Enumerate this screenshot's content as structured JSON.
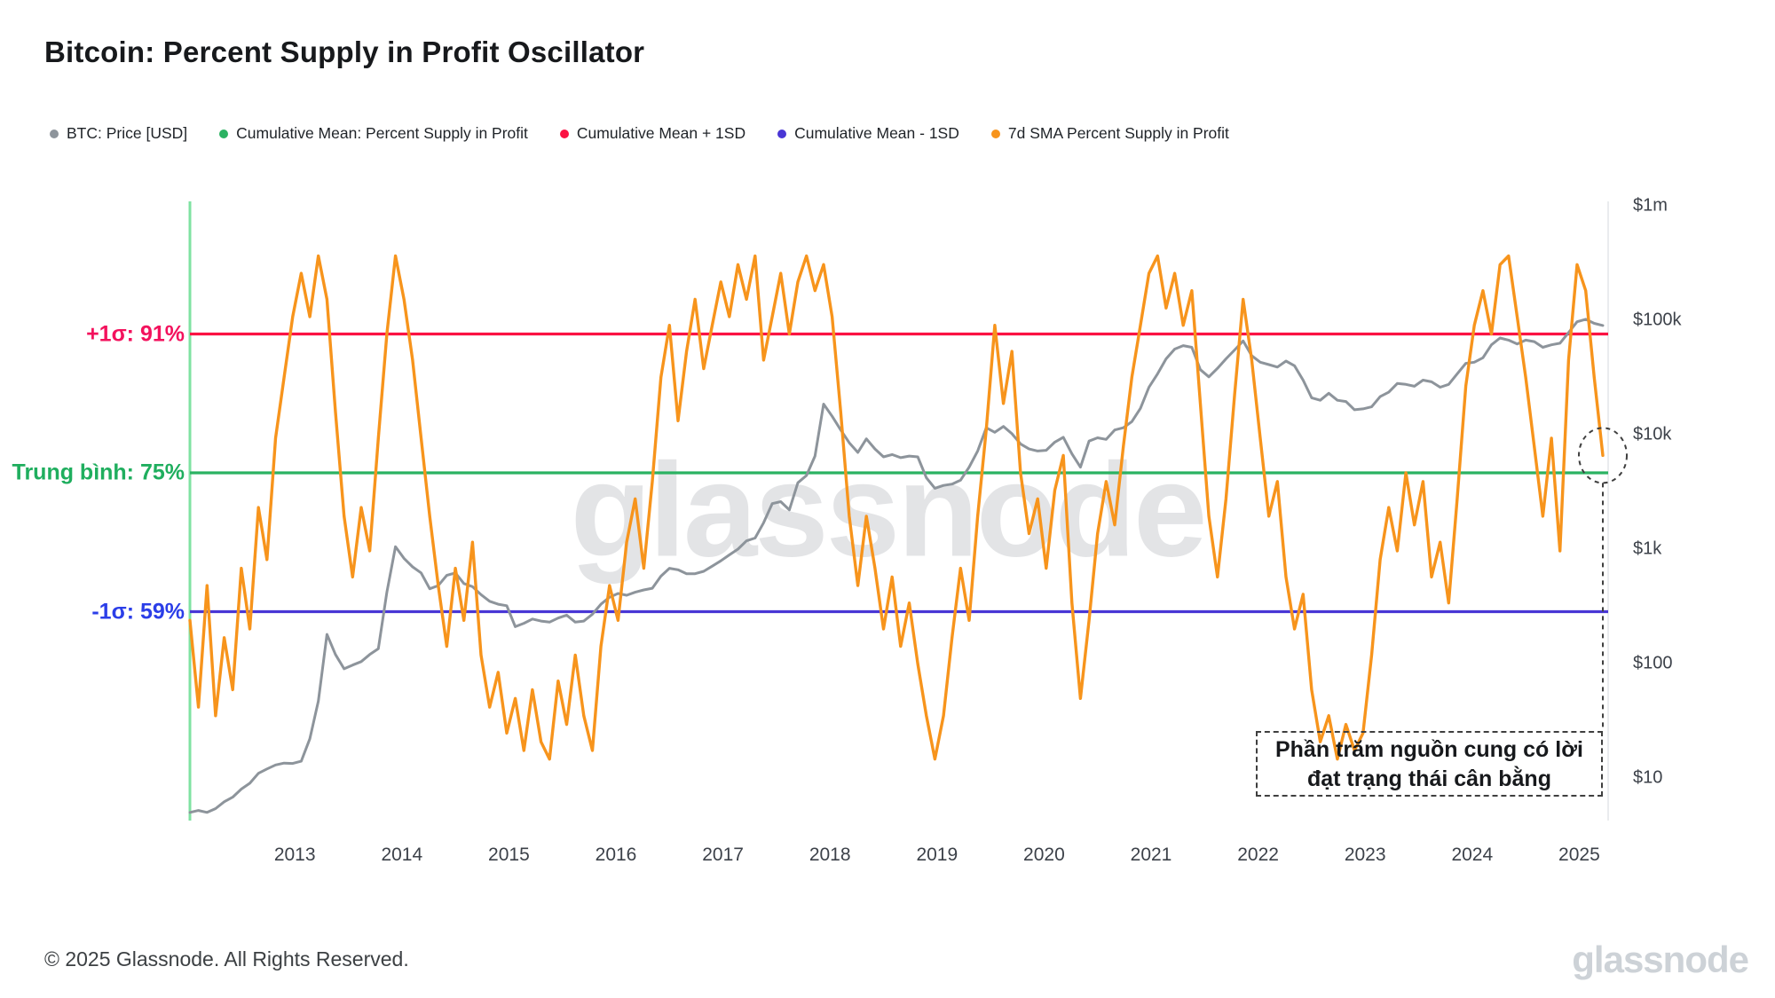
{
  "title": "Bitcoin: Percent Supply in Profit Oscillator",
  "watermark": "glassnode",
  "legend": [
    {
      "label": "BTC: Price [USD]",
      "color": "#8d949b"
    },
    {
      "label": "Cumulative Mean: Percent Supply in Profit",
      "color": "#2bb262"
    },
    {
      "label": "Cumulative Mean + 1SD",
      "color": "#fb1243"
    },
    {
      "label": "Cumulative Mean - 1SD",
      "color": "#4936d5"
    },
    {
      "label": "7d SMA Percent Supply in Profit",
      "color": "#f7941c"
    }
  ],
  "annotations": {
    "callout_line1": "Phần trăm nguồn cung có lời",
    "callout_line2": "đạt trạng thái cân bằng"
  },
  "footer": {
    "copyright": "© 2025 Glassnode. All Rights Reserved.",
    "logo": "glassnode"
  },
  "chart_data": {
    "type": "line",
    "title": "Bitcoin: Percent Supply in Profit Oscillator",
    "grid": false,
    "legend_position": "top",
    "x_range": [
      2012.02,
      2025.27
    ],
    "x_axis": {
      "ticks": [
        2013,
        2014,
        2015,
        2016,
        2017,
        2018,
        2019,
        2020,
        2021,
        2022,
        2023,
        2024,
        2025
      ]
    },
    "y_right": {
      "scale": "log",
      "unit": "USD",
      "ticks": [
        {
          "label": "$1m",
          "value": 1000000
        },
        {
          "label": "$100k",
          "value": 100000
        },
        {
          "label": "$10k",
          "value": 10000
        },
        {
          "label": "$1k",
          "value": 1000
        },
        {
          "label": "$100",
          "value": 100
        },
        {
          "label": "$10",
          "value": 10
        }
      ]
    },
    "y_left": {
      "unit": "%",
      "hidden": true,
      "range_hint": [
        35,
        102
      ]
    },
    "levels": [
      {
        "id": "plus1sd",
        "label": "+1σ: 91%",
        "value": 91,
        "line_color": "#fb1243",
        "label_color": "#f3125d"
      },
      {
        "id": "mean",
        "label": "Trung bình: 75%",
        "value": 75,
        "line_color": "#2bb262",
        "label_color": "#1fae5e"
      },
      {
        "id": "minus1sd",
        "label": "-1σ: 59%",
        "value": 59,
        "line_color": "#4936d5",
        "label_color": "#2b3ee8"
      }
    ],
    "edge_line_color": "#7fe2a2",
    "highlight": {
      "t": 2025.22,
      "value": 77,
      "series": "7d SMA Percent Supply in Profit"
    },
    "series": [
      {
        "name": "BTC: Price [USD]",
        "axis": "price",
        "color": "#8d949b",
        "width": 3,
        "t0": 2012.02,
        "dt": 0.08,
        "values": [
          5.0,
          5.2,
          5.0,
          5.4,
          6.2,
          6.8,
          8,
          9,
          11,
          12,
          13,
          13.5,
          13.4,
          14,
          22,
          47,
          180,
          120,
          90,
          97,
          104,
          120,
          135,
          420,
          1050,
          830,
          700,
          620,
          450,
          480,
          590,
          620,
          500,
          470,
          400,
          350,
          330,
          320,
          210,
          225,
          245,
          235,
          230,
          250,
          265,
          230,
          235,
          270,
          330,
          380,
          410,
          395,
          420,
          440,
          455,
          580,
          680,
          660,
          610,
          610,
          640,
          710,
          790,
          890,
          1000,
          1180,
          1250,
          1700,
          2500,
          2600,
          2200,
          3800,
          4400,
          6500,
          18500,
          14500,
          11000,
          8500,
          7000,
          9200,
          7500,
          6400,
          6700,
          6300,
          6500,
          6400,
          4200,
          3400,
          3600,
          3700,
          4000,
          5200,
          7200,
          11500,
          10500,
          11800,
          10200,
          8300,
          7500,
          7200,
          7300,
          8600,
          9500,
          6800,
          5200,
          8800,
          9400,
          9100,
          11000,
          11500,
          13000,
          17000,
          26000,
          34000,
          46000,
          56000,
          60000,
          58000,
          37000,
          32000,
          38000,
          46000,
          55000,
          66000,
          49000,
          43000,
          41000,
          39000,
          44000,
          40000,
          30000,
          21000,
          20000,
          23000,
          20000,
          19500,
          16500,
          16800,
          17500,
          21500,
          23500,
          28000,
          27500,
          26500,
          30000,
          29000,
          26000,
          27500,
          34000,
          42000,
          43000,
          47000,
          61000,
          70000,
          67000,
          62000,
          67000,
          65000,
          58000,
          61000,
          63000,
          78000,
          97000,
          102000,
          94000,
          90000
        ]
      },
      {
        "name": "7d SMA Percent Supply in Profit",
        "axis": "percent",
        "color": "#f7941c",
        "width": 3.4,
        "t0": 2012.02,
        "dt": 0.08,
        "values": [
          58,
          48,
          62,
          47,
          56,
          50,
          64,
          57,
          71,
          65,
          79,
          86,
          93,
          98,
          93,
          100,
          95,
          82,
          70,
          63,
          71,
          66,
          79,
          91,
          100,
          95,
          88,
          79,
          70,
          62,
          55,
          64,
          58,
          67,
          54,
          48,
          52,
          45,
          49,
          43,
          50,
          44,
          42,
          51,
          46,
          54,
          47,
          43,
          55,
          62,
          58,
          67,
          72,
          64,
          74,
          86,
          92,
          81,
          89,
          95,
          87,
          92,
          97,
          93,
          99,
          95,
          100,
          88,
          93,
          98,
          91,
          97,
          100,
          96,
          99,
          93,
          82,
          70,
          62,
          70,
          64,
          57,
          63,
          55,
          60,
          53,
          47,
          42,
          47,
          56,
          64,
          58,
          70,
          80,
          92,
          83,
          89,
          75,
          68,
          72,
          64,
          73,
          77,
          60,
          49,
          58,
          68,
          74,
          69,
          78,
          86,
          92,
          98,
          100,
          94,
          98,
          92,
          96,
          83,
          70,
          63,
          72,
          84,
          95,
          88,
          79,
          70,
          74,
          63,
          57,
          61,
          50,
          44,
          47,
          42,
          46,
          43,
          45,
          54,
          65,
          71,
          66,
          75,
          69,
          74,
          63,
          67,
          60,
          72,
          85,
          92,
          96,
          91,
          99,
          100,
          93,
          86,
          78,
          70,
          79,
          66,
          88,
          99,
          96,
          86,
          77
        ]
      }
    ]
  }
}
